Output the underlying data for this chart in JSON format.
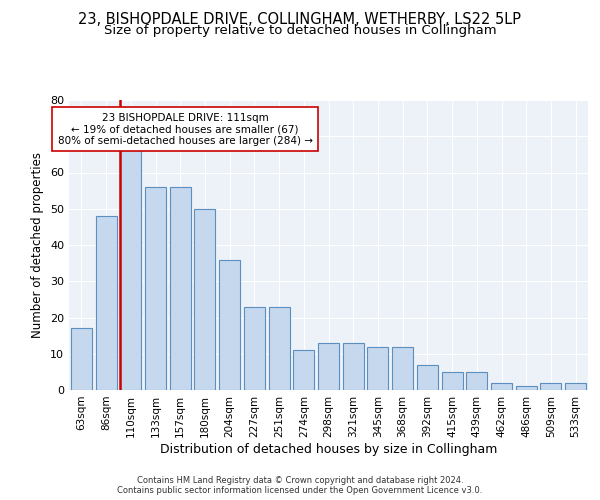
{
  "title": "23, BISHOPDALE DRIVE, COLLINGHAM, WETHERBY, LS22 5LP",
  "subtitle": "Size of property relative to detached houses in Collingham",
  "xlabel": "Distribution of detached houses by size in Collingham",
  "ylabel": "Number of detached properties",
  "categories": [
    "63sqm",
    "86sqm",
    "110sqm",
    "133sqm",
    "157sqm",
    "180sqm",
    "204sqm",
    "227sqm",
    "251sqm",
    "274sqm",
    "298sqm",
    "321sqm",
    "345sqm",
    "368sqm",
    "392sqm",
    "415sqm",
    "439sqm",
    "462sqm",
    "486sqm",
    "509sqm",
    "533sqm"
  ],
  "values": [
    17,
    48,
    67,
    56,
    56,
    50,
    36,
    23,
    23,
    11,
    13,
    13,
    12,
    12,
    7,
    5,
    5,
    2,
    1,
    2,
    2
  ],
  "bar_color": "#c5d8ed",
  "bar_edge_color": "#5a8fc0",
  "property_bar_index": 2,
  "property_line_color": "#cc0000",
  "annotation_line1": "23 BISHOPDALE DRIVE: 111sqm",
  "annotation_line2": "← 19% of detached houses are smaller (67)",
  "annotation_line3": "80% of semi-detached houses are larger (284) →",
  "annotation_box_facecolor": "white",
  "annotation_box_edgecolor": "#cc0000",
  "ylim": [
    0,
    80
  ],
  "yticks": [
    0,
    10,
    20,
    30,
    40,
    50,
    60,
    70,
    80
  ],
  "title_fontsize": 10.5,
  "subtitle_fontsize": 9.5,
  "xlabel_fontsize": 9,
  "ylabel_fontsize": 8.5,
  "tick_fontsize": 7.5,
  "ytick_fontsize": 8,
  "annotation_fontsize": 7.5,
  "footer_text": "Contains HM Land Registry data © Crown copyright and database right 2024.\nContains public sector information licensed under the Open Government Licence v3.0.",
  "footer_fontsize": 6,
  "background_color": "#edf1f8",
  "grid_color": "#ffffff"
}
